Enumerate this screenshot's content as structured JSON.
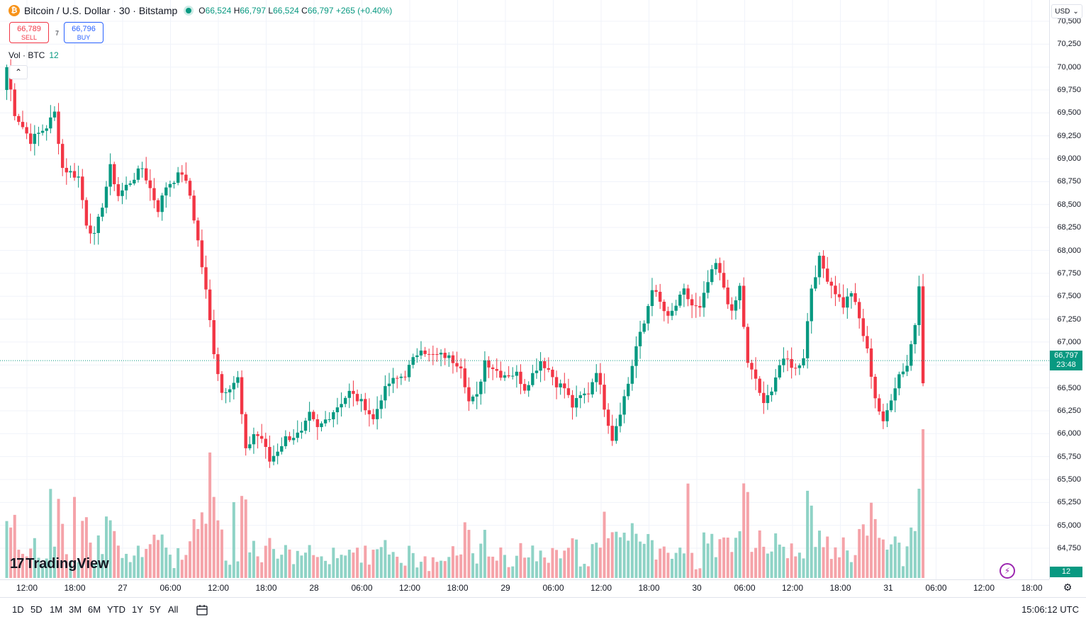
{
  "header": {
    "symbol_icon": "bitcoin-icon",
    "title": "Bitcoin / U.S. Dollar · 30 · Bitstamp",
    "ohlc": {
      "o_key": "O",
      "o": "66,524",
      "h_key": "H",
      "h": "66,797",
      "l_key": "L",
      "l": "66,524",
      "c_key": "C",
      "c": "66,797",
      "change": "+265 (+0.40%)"
    }
  },
  "trade": {
    "sell_price": "66,789",
    "sell_label": "SELL",
    "spread": "7",
    "buy_price": "66,796",
    "buy_label": "BUY"
  },
  "volume_legend": {
    "label": "Vol · BTC",
    "value": "12"
  },
  "price_axis": {
    "currency": "USD",
    "labels": [
      "70,500",
      "70,250",
      "70,000",
      "69,750",
      "69,500",
      "69,250",
      "69,000",
      "68,750",
      "68,500",
      "68,250",
      "68,000",
      "67,750",
      "67,500",
      "67,250",
      "67,000",
      "66,750",
      "66,500",
      "66,250",
      "66,000",
      "65,750",
      "65,500",
      "65,250",
      "65,000",
      "64,750"
    ],
    "last_price": "66,797",
    "countdown": "23:48",
    "volume_tag": "12"
  },
  "time_axis": {
    "labels": [
      "12:00",
      "18:00",
      "27",
      "06:00",
      "12:00",
      "18:00",
      "28",
      "06:00",
      "12:00",
      "18:00",
      "29",
      "06:00",
      "12:00",
      "18:00",
      "30",
      "06:00",
      "12:00",
      "18:00",
      "31",
      "06:00",
      "12:00",
      "18:00"
    ]
  },
  "bottom_bar": {
    "ranges": [
      "1D",
      "5D",
      "1M",
      "3M",
      "6M",
      "YTD",
      "1Y",
      "5Y",
      "All"
    ],
    "clock": "15:06:12 UTC"
  },
  "branding": {
    "logo_text": "TradingView"
  },
  "colors": {
    "up": "#089981",
    "down": "#f23645",
    "vol_up": "#8fd3c6",
    "vol_down": "#f5a3a9",
    "grid": "#f0f3fa"
  },
  "chart_data": {
    "type": "candlestick",
    "interval": "30",
    "y_range": [
      64500,
      70550
    ],
    "x_labels": [
      "12:00",
      "18:00",
      "27",
      "06:00",
      "12:00",
      "18:00",
      "28",
      "06:00",
      "12:00",
      "18:00",
      "29",
      "06:00",
      "12:00",
      "18:00",
      "30",
      "06:00",
      "12:00",
      "18:00",
      "31",
      "06:00",
      "12:00",
      "18:00"
    ],
    "anchors": [
      [
        0,
        70000
      ],
      [
        2,
        69500
      ],
      [
        6,
        69200
      ],
      [
        10,
        69350
      ],
      [
        12,
        69500
      ],
      [
        14,
        68900
      ],
      [
        18,
        68800
      ],
      [
        20,
        68300
      ],
      [
        22,
        68150
      ],
      [
        24,
        68500
      ],
      [
        26,
        68900
      ],
      [
        28,
        68600
      ],
      [
        30,
        68700
      ],
      [
        34,
        68900
      ],
      [
        38,
        68450
      ],
      [
        40,
        68700
      ],
      [
        44,
        68850
      ],
      [
        46,
        68600
      ],
      [
        48,
        68100
      ],
      [
        50,
        67550
      ],
      [
        52,
        66900
      ],
      [
        54,
        66450
      ],
      [
        58,
        66600
      ],
      [
        60,
        65800
      ],
      [
        62,
        66000
      ],
      [
        64,
        65950
      ],
      [
        66,
        65700
      ],
      [
        70,
        65950
      ],
      [
        74,
        66000
      ],
      [
        76,
        66200
      ],
      [
        78,
        66050
      ],
      [
        82,
        66250
      ],
      [
        86,
        66450
      ],
      [
        90,
        66300
      ],
      [
        92,
        66150
      ],
      [
        94,
        66400
      ],
      [
        96,
        66550
      ],
      [
        100,
        66650
      ],
      [
        104,
        66950
      ],
      [
        106,
        66850
      ],
      [
        110,
        66850
      ],
      [
        114,
        66750
      ],
      [
        116,
        66350
      ],
      [
        118,
        66400
      ],
      [
        120,
        66800
      ],
      [
        124,
        66650
      ],
      [
        128,
        66650
      ],
      [
        130,
        66500
      ],
      [
        134,
        66800
      ],
      [
        136,
        66700
      ],
      [
        138,
        66550
      ],
      [
        140,
        66500
      ],
      [
        142,
        66300
      ],
      [
        144,
        66400
      ],
      [
        146,
        66450
      ],
      [
        148,
        66700
      ],
      [
        150,
        66300
      ],
      [
        152,
        65950
      ],
      [
        154,
        66250
      ],
      [
        156,
        66550
      ],
      [
        158,
        66950
      ],
      [
        160,
        67200
      ],
      [
        162,
        67600
      ],
      [
        166,
        67250
      ],
      [
        170,
        67550
      ],
      [
        172,
        67400
      ],
      [
        174,
        67350
      ],
      [
        176,
        67650
      ],
      [
        178,
        67850
      ],
      [
        180,
        67600
      ],
      [
        182,
        67300
      ],
      [
        184,
        67600
      ],
      [
        186,
        66750
      ],
      [
        188,
        66600
      ],
      [
        190,
        66300
      ],
      [
        192,
        66500
      ],
      [
        194,
        66750
      ],
      [
        196,
        66800
      ],
      [
        198,
        66700
      ],
      [
        200,
        66850
      ],
      [
        202,
        67600
      ],
      [
        204,
        67900
      ],
      [
        206,
        67700
      ],
      [
        208,
        67550
      ],
      [
        210,
        67400
      ],
      [
        212,
        67550
      ],
      [
        214,
        67250
      ],
      [
        216,
        66900
      ],
      [
        218,
        66400
      ],
      [
        220,
        66100
      ],
      [
        222,
        66400
      ],
      [
        224,
        66650
      ],
      [
        226,
        66750
      ],
      [
        228,
        67200
      ],
      [
        229,
        67650
      ],
      [
        230,
        66550
      ]
    ]
  }
}
